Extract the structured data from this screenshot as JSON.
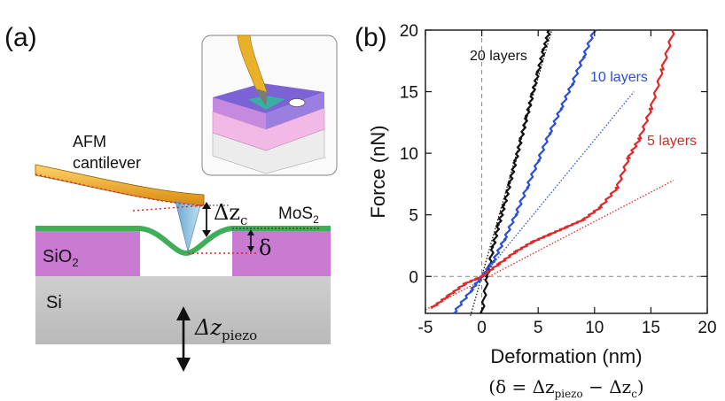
{
  "panel_a": {
    "label": "(a)",
    "cantilever_label_line1": "AFM",
    "cantilever_label_line2": "cantilever",
    "dz_c": "Δz",
    "dz_c_sub": "c",
    "mos2": "MoS",
    "mos2_sub": "2",
    "delta": "δ",
    "sio2": "SiO",
    "sio2_sub": "2",
    "si": "Si",
    "dz_piezo": "Δz",
    "dz_piezo_sub": "piezo",
    "colors": {
      "sio2": "#c97bd1",
      "si": "#c8c8c8",
      "mos2": "#3fae5b",
      "cantilever": "#f0b020",
      "tip": "#8fc3e0",
      "guide": "#e02020"
    }
  },
  "panel_b": {
    "label": "(b)",
    "formula_left": "(δ = Δz",
    "formula_sub1": "piezo",
    "formula_mid": " − Δz",
    "formula_sub2": "c",
    "formula_right": ")"
  },
  "chart_data": {
    "type": "line",
    "xlabel": "Deformation (nm)",
    "ylabel": "Force (nN)",
    "xlim": [
      -5,
      20
    ],
    "ylim": [
      -3,
      20
    ],
    "xticks": [
      -5,
      0,
      5,
      10,
      15,
      20
    ],
    "yticks": [
      0,
      5,
      10,
      15,
      20
    ],
    "series": [
      {
        "name": "20 layers",
        "color": "#111111",
        "x": [
          0,
          0.5,
          1,
          1.5,
          2,
          2.5,
          3,
          3.5,
          4,
          4.5,
          5,
          5.5,
          6
        ],
        "y": [
          -3,
          0,
          2.4,
          4.2,
          5.8,
          7.6,
          9.4,
          11.2,
          13,
          14.8,
          16.6,
          18.4,
          20
        ],
        "fit_x": [
          -1,
          6.2
        ],
        "fit_y": [
          -3.2,
          20
        ]
      },
      {
        "name": "10 layers",
        "color": "#2a4fd8",
        "x": [
          -2.5,
          -1,
          0,
          1,
          2,
          3,
          4,
          5,
          6,
          7,
          8,
          9,
          10
        ],
        "y": [
          -3,
          -1.2,
          0,
          1.2,
          3,
          5,
          7.2,
          9.4,
          11.6,
          13.6,
          15.6,
          17.8,
          20
        ],
        "fit_x": [
          -1,
          13.5
        ],
        "fit_y": [
          -1.2,
          15
        ]
      },
      {
        "name": "5 layers",
        "color": "#e02828",
        "x": [
          -4.5,
          -3,
          -1.5,
          0,
          1.5,
          3,
          4.5,
          6,
          7.5,
          9,
          10.5,
          12,
          13,
          14,
          15,
          16,
          17
        ],
        "y": [
          -2.6,
          -1.6,
          -0.6,
          0,
          1,
          2,
          2.8,
          3.4,
          4,
          4.6,
          5.6,
          7.2,
          9.6,
          11.2,
          13.6,
          16.8,
          20
        ],
        "fit_x": [
          -5,
          17
        ],
        "fit_y": [
          -2.7,
          7.8
        ]
      }
    ]
  }
}
